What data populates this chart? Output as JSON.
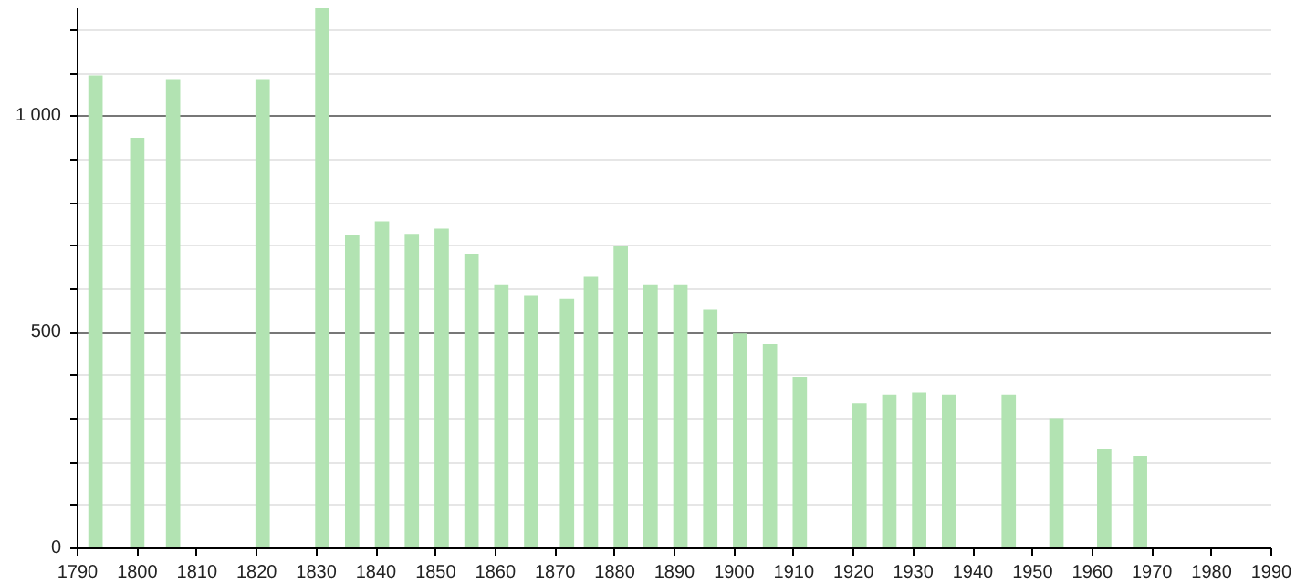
{
  "chart_data": {
    "type": "bar",
    "x": [
      1793,
      1800,
      1806,
      1821,
      1831,
      1836,
      1841,
      1846,
      1851,
      1856,
      1861,
      1866,
      1872,
      1876,
      1881,
      1886,
      1891,
      1896,
      1901,
      1906,
      1911,
      1921,
      1926,
      1931,
      1936,
      1946,
      1954,
      1962,
      1968
    ],
    "values": [
      1095,
      950,
      1084,
      1084,
      1250,
      724,
      757,
      728,
      740,
      682,
      611,
      586,
      577,
      628,
      699,
      611,
      611,
      552,
      498,
      473,
      397,
      335,
      355,
      360,
      355,
      355,
      301,
      230,
      213
    ],
    "color": "#b2e3b2",
    "xlim": [
      1790,
      1990
    ],
    "xticks": [
      1790,
      1800,
      1810,
      1820,
      1830,
      1840,
      1850,
      1860,
      1870,
      1880,
      1890,
      1900,
      1910,
      1920,
      1930,
      1940,
      1950,
      1960,
      1970,
      1980,
      1990
    ],
    "ylim": [
      0,
      1250
    ],
    "yticks": [
      0,
      {
        "value": 100,
        "label": null
      },
      {
        "value": 200,
        "label": null
      },
      {
        "value": 300,
        "label": null
      },
      {
        "value": 400,
        "label": null
      },
      500,
      {
        "value": 600,
        "label": null
      },
      {
        "value": 700,
        "label": null
      },
      {
        "value": 800,
        "label": null
      },
      {
        "value": 900,
        "label": null
      },
      {
        "value": 1000,
        "label": "1 000"
      },
      {
        "value": 1100,
        "label": null
      },
      {
        "value": 1200,
        "label": null
      }
    ],
    "grid": "y"
  }
}
